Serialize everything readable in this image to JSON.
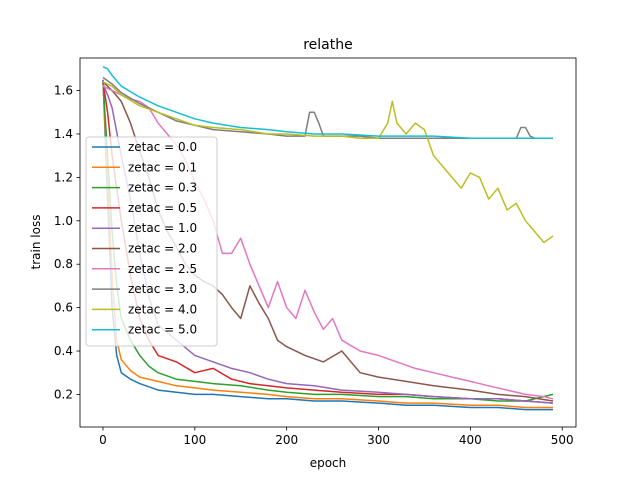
{
  "chart_data": {
    "type": "line",
    "title": "relathe",
    "xlabel": "epoch",
    "ylabel": "train loss",
    "xlim": [
      -25,
      515
    ],
    "ylim": [
      0.05,
      1.75
    ],
    "xticks": [
      0,
      100,
      200,
      300,
      400,
      500
    ],
    "yticks": [
      0.2,
      0.4,
      0.6,
      0.8,
      1.0,
      1.2,
      1.4,
      1.6
    ],
    "xtick_labels": [
      "0",
      "100",
      "200",
      "300",
      "400",
      "500"
    ],
    "ytick_labels": [
      "0.2",
      "0.4",
      "0.6",
      "0.8",
      "1.0",
      "1.2",
      "1.4",
      "1.6"
    ],
    "grid": false,
    "legend_position": "center-left",
    "series": [
      {
        "name": "zetac = 0.0",
        "color": "#1f77b4",
        "x": [
          0,
          5,
          10,
          15,
          20,
          30,
          40,
          60,
          80,
          100,
          120,
          150,
          180,
          200,
          230,
          260,
          300,
          330,
          360,
          400,
          430,
          460,
          490
        ],
        "y": [
          1.65,
          1.1,
          0.6,
          0.38,
          0.3,
          0.27,
          0.25,
          0.22,
          0.21,
          0.2,
          0.2,
          0.19,
          0.18,
          0.18,
          0.17,
          0.17,
          0.16,
          0.15,
          0.15,
          0.14,
          0.14,
          0.13,
          0.13
        ]
      },
      {
        "name": "zetac = 0.1",
        "color": "#ff7f0e",
        "x": [
          0,
          5,
          10,
          15,
          20,
          30,
          40,
          60,
          80,
          100,
          120,
          150,
          180,
          200,
          230,
          260,
          300,
          330,
          360,
          400,
          430,
          460,
          490
        ],
        "y": [
          1.64,
          1.2,
          0.75,
          0.45,
          0.36,
          0.31,
          0.28,
          0.26,
          0.24,
          0.23,
          0.22,
          0.21,
          0.2,
          0.19,
          0.18,
          0.18,
          0.17,
          0.16,
          0.16,
          0.15,
          0.15,
          0.14,
          0.14
        ]
      },
      {
        "name": "zetac = 0.3",
        "color": "#2ca02c",
        "x": [
          0,
          5,
          10,
          15,
          20,
          30,
          40,
          50,
          60,
          80,
          100,
          120,
          150,
          180,
          200,
          230,
          260,
          300,
          330,
          360,
          400,
          430,
          460,
          490
        ],
        "y": [
          1.64,
          1.3,
          0.95,
          0.7,
          0.55,
          0.45,
          0.38,
          0.33,
          0.3,
          0.27,
          0.26,
          0.25,
          0.24,
          0.22,
          0.21,
          0.2,
          0.2,
          0.19,
          0.19,
          0.18,
          0.18,
          0.17,
          0.17,
          0.2
        ]
      },
      {
        "name": "zetac = 0.5",
        "color": "#d62728",
        "x": [
          0,
          5,
          10,
          20,
          30,
          40,
          50,
          60,
          80,
          100,
          120,
          140,
          160,
          180,
          200,
          230,
          260,
          300,
          330,
          360,
          400,
          430,
          460,
          490
        ],
        "y": [
          1.64,
          1.5,
          1.3,
          1.0,
          0.75,
          0.55,
          0.45,
          0.38,
          0.35,
          0.3,
          0.32,
          0.27,
          0.25,
          0.24,
          0.23,
          0.22,
          0.21,
          0.2,
          0.2,
          0.19,
          0.18,
          0.18,
          0.17,
          0.16
        ]
      },
      {
        "name": "zetac = 1.0",
        "color": "#9467bd",
        "x": [
          0,
          5,
          10,
          20,
          30,
          40,
          50,
          60,
          80,
          100,
          120,
          140,
          160,
          180,
          200,
          230,
          260,
          300,
          330,
          360,
          400,
          430,
          460,
          490
        ],
        "y": [
          1.63,
          1.58,
          1.52,
          1.3,
          1.1,
          0.85,
          0.65,
          0.52,
          0.45,
          0.38,
          0.35,
          0.32,
          0.3,
          0.27,
          0.25,
          0.24,
          0.22,
          0.21,
          0.2,
          0.19,
          0.18,
          0.18,
          0.17,
          0.16
        ]
      },
      {
        "name": "zetac = 2.0",
        "color": "#8c564b",
        "x": [
          0,
          10,
          20,
          30,
          40,
          50,
          60,
          70,
          80,
          90,
          100,
          110,
          120,
          130,
          140,
          150,
          160,
          170,
          180,
          190,
          200,
          220,
          240,
          260,
          280,
          300,
          330,
          360,
          400,
          430,
          460,
          490
        ],
        "y": [
          1.64,
          1.6,
          1.55,
          1.45,
          1.32,
          1.2,
          1.05,
          0.95,
          0.88,
          0.8,
          0.75,
          0.72,
          0.7,
          0.66,
          0.6,
          0.55,
          0.7,
          0.62,
          0.55,
          0.45,
          0.42,
          0.38,
          0.35,
          0.4,
          0.3,
          0.28,
          0.26,
          0.24,
          0.22,
          0.2,
          0.19,
          0.17
        ]
      },
      {
        "name": "zetac = 2.5",
        "color": "#e377c2",
        "x": [
          0,
          10,
          20,
          30,
          40,
          50,
          60,
          70,
          80,
          90,
          100,
          110,
          120,
          130,
          140,
          150,
          160,
          170,
          180,
          190,
          200,
          210,
          220,
          230,
          240,
          250,
          260,
          280,
          300,
          320,
          340,
          360,
          380,
          400,
          420,
          440,
          460,
          480,
          490
        ],
        "y": [
          1.62,
          1.6,
          1.58,
          1.56,
          1.55,
          1.52,
          1.45,
          1.4,
          1.35,
          1.28,
          1.18,
          1.1,
          1.0,
          0.85,
          0.85,
          0.92,
          0.8,
          0.7,
          0.6,
          0.72,
          0.6,
          0.55,
          0.68,
          0.58,
          0.5,
          0.55,
          0.45,
          0.4,
          0.38,
          0.35,
          0.32,
          0.3,
          0.28,
          0.26,
          0.24,
          0.22,
          0.2,
          0.19,
          0.18
        ]
      },
      {
        "name": "zetac = 3.0",
        "color": "#7f7f7f",
        "x": [
          0,
          10,
          20,
          40,
          60,
          80,
          100,
          120,
          150,
          180,
          200,
          220,
          225,
          230,
          235,
          240,
          250,
          280,
          300,
          330,
          360,
          400,
          430,
          450,
          455,
          460,
          465,
          470,
          480,
          490
        ],
        "y": [
          1.66,
          1.63,
          1.59,
          1.54,
          1.5,
          1.46,
          1.44,
          1.42,
          1.41,
          1.4,
          1.39,
          1.39,
          1.5,
          1.5,
          1.45,
          1.39,
          1.39,
          1.39,
          1.38,
          1.38,
          1.38,
          1.38,
          1.38,
          1.38,
          1.43,
          1.43,
          1.39,
          1.38,
          1.38,
          1.38
        ]
      },
      {
        "name": "zetac = 4.0",
        "color": "#bcbd22",
        "x": [
          0,
          10,
          20,
          40,
          60,
          80,
          100,
          120,
          150,
          180,
          200,
          230,
          260,
          280,
          300,
          310,
          315,
          320,
          330,
          340,
          350,
          360,
          370,
          380,
          390,
          400,
          410,
          420,
          430,
          440,
          450,
          460,
          470,
          480,
          490
        ],
        "y": [
          1.64,
          1.62,
          1.58,
          1.53,
          1.5,
          1.47,
          1.44,
          1.43,
          1.42,
          1.4,
          1.4,
          1.39,
          1.39,
          1.38,
          1.38,
          1.45,
          1.55,
          1.45,
          1.4,
          1.45,
          1.42,
          1.3,
          1.25,
          1.2,
          1.15,
          1.22,
          1.2,
          1.1,
          1.15,
          1.05,
          1.08,
          1.0,
          0.95,
          0.9,
          0.93
        ]
      },
      {
        "name": "zetac = 5.0",
        "color": "#17becf",
        "x": [
          0,
          5,
          10,
          20,
          40,
          60,
          80,
          100,
          120,
          150,
          180,
          200,
          230,
          260,
          300,
          330,
          360,
          400,
          430,
          460,
          490
        ],
        "y": [
          1.71,
          1.7,
          1.67,
          1.62,
          1.57,
          1.53,
          1.5,
          1.47,
          1.45,
          1.43,
          1.42,
          1.41,
          1.4,
          1.4,
          1.39,
          1.39,
          1.39,
          1.38,
          1.38,
          1.38,
          1.38
        ]
      }
    ]
  }
}
